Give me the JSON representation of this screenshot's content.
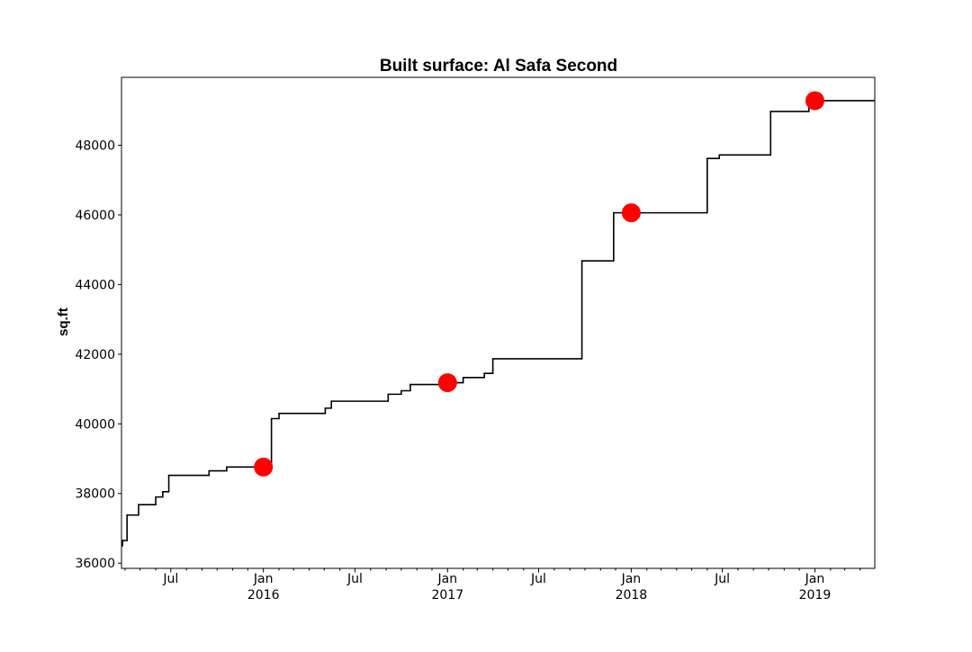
{
  "chart_data": {
    "type": "line",
    "title": "Built surface: Al Safa Second",
    "xlabel": "",
    "ylabel": "sq.ft",
    "xlim": [
      "2015-03-25",
      "2019-04-30"
    ],
    "ylim": [
      35850,
      49950
    ],
    "y_ticks": [
      36000,
      38000,
      40000,
      42000,
      44000,
      46000,
      48000
    ],
    "x_major_ticks": [
      {
        "date": "2015-07-01",
        "label": "Jul",
        "sublabel": ""
      },
      {
        "date": "2016-01-01",
        "label": "Jan",
        "sublabel": "2016"
      },
      {
        "date": "2016-07-01",
        "label": "Jul",
        "sublabel": ""
      },
      {
        "date": "2017-01-01",
        "label": "Jan",
        "sublabel": "2017"
      },
      {
        "date": "2017-07-01",
        "label": "Jul",
        "sublabel": ""
      },
      {
        "date": "2018-01-01",
        "label": "Jan",
        "sublabel": "2018"
      },
      {
        "date": "2018-07-01",
        "label": "Jul",
        "sublabel": ""
      },
      {
        "date": "2019-01-01",
        "label": "Jan",
        "sublabel": "2019"
      }
    ],
    "x_minor_ticks": [
      "2015-04-01",
      "2015-05-01",
      "2015-06-01",
      "2015-08-01",
      "2015-09-01",
      "2015-10-01",
      "2015-11-01",
      "2015-12-01",
      "2016-02-01",
      "2016-03-01",
      "2016-04-01",
      "2016-05-01",
      "2016-06-01",
      "2016-08-01",
      "2016-09-01",
      "2016-10-01",
      "2016-11-01",
      "2016-12-01",
      "2017-02-01",
      "2017-03-01",
      "2017-04-01",
      "2017-05-01",
      "2017-06-01",
      "2017-08-01",
      "2017-09-01",
      "2017-10-01",
      "2017-11-01",
      "2017-12-01",
      "2018-02-01",
      "2018-03-01",
      "2018-04-01",
      "2018-05-01",
      "2018-06-01",
      "2018-08-01",
      "2018-09-01",
      "2018-10-01",
      "2018-11-01",
      "2018-12-01",
      "2019-02-01",
      "2019-03-01",
      "2019-04-01"
    ],
    "grid": false,
    "legend": false,
    "series": [
      {
        "style": "step",
        "color": "#000000",
        "points": [
          [
            "2015-03-25",
            36500
          ],
          [
            "2015-03-27",
            36650
          ],
          [
            "2015-04-05",
            37380
          ],
          [
            "2015-04-28",
            37680
          ],
          [
            "2015-06-01",
            37900
          ],
          [
            "2015-06-15",
            38050
          ],
          [
            "2015-06-27",
            38520
          ],
          [
            "2015-09-15",
            38650
          ],
          [
            "2015-10-20",
            38760
          ],
          [
            "2016-01-17",
            40150
          ],
          [
            "2016-02-01",
            40300
          ],
          [
            "2016-05-03",
            40450
          ],
          [
            "2016-05-15",
            40650
          ],
          [
            "2016-09-05",
            40850
          ],
          [
            "2016-10-01",
            40950
          ],
          [
            "2016-10-19",
            41130
          ],
          [
            "2016-12-25",
            41180
          ],
          [
            "2017-02-01",
            41330
          ],
          [
            "2017-03-15",
            41450
          ],
          [
            "2017-04-01",
            41870
          ],
          [
            "2017-09-25",
            44680
          ],
          [
            "2017-11-27",
            46060
          ],
          [
            "2018-06-01",
            47620
          ],
          [
            "2018-06-25",
            47720
          ],
          [
            "2018-10-05",
            48970
          ],
          [
            "2018-12-20",
            49280
          ],
          [
            "2019-04-30",
            49280
          ]
        ]
      },
      {
        "style": "markers",
        "color": "#ff0000",
        "points": [
          [
            "2016-01-01",
            38760
          ],
          [
            "2017-01-01",
            41180
          ],
          [
            "2018-01-01",
            46060
          ],
          [
            "2019-01-01",
            49280
          ]
        ]
      }
    ]
  }
}
